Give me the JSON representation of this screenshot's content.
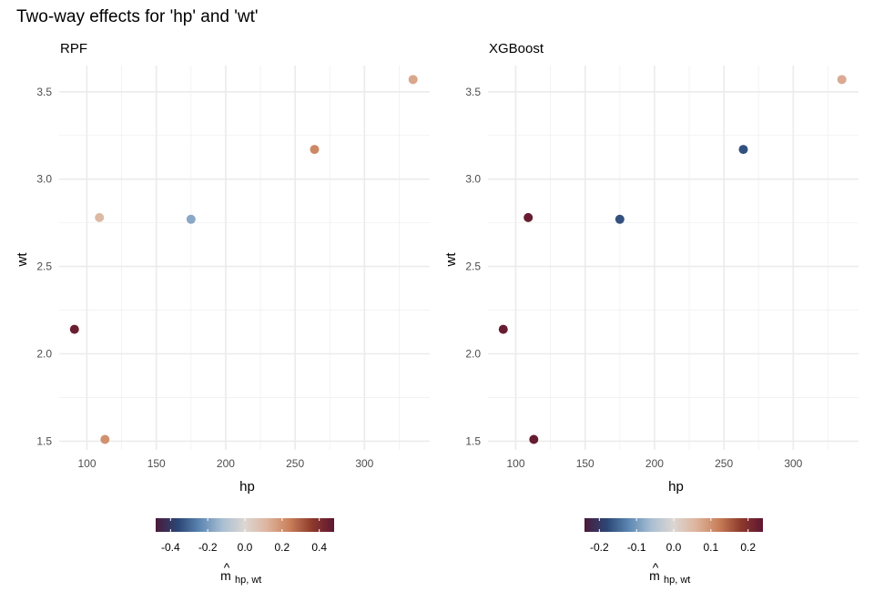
{
  "title": "Two-way effects for 'hp' and 'wt'",
  "chart_data": [
    {
      "type": "scatter",
      "subtitle": "RPF",
      "xlabel": "hp",
      "ylabel": "wt",
      "xlim": [
        80,
        347
      ],
      "ylim": [
        1.45,
        3.65
      ],
      "x_ticks": [
        "100",
        "150",
        "200",
        "250",
        "300"
      ],
      "x_tick_values": [
        100,
        150,
        200,
        250,
        300
      ],
      "y_ticks": [
        "1.5",
        "2.0",
        "2.5",
        "3.0",
        "3.5"
      ],
      "y_tick_values": [
        1.5,
        2.0,
        2.5,
        3.0,
        3.5
      ],
      "grid": true,
      "points": [
        {
          "x": 335,
          "y": 3.57,
          "value": 0.15
        },
        {
          "x": 264,
          "y": 3.17,
          "value": 0.22
        },
        {
          "x": 109,
          "y": 2.78,
          "value": 0.1
        },
        {
          "x": 175,
          "y": 2.77,
          "value": -0.17
        },
        {
          "x": 91,
          "y": 2.14,
          "value": 0.45
        },
        {
          "x": 113,
          "y": 1.51,
          "value": 0.2
        }
      ],
      "legend": {
        "position": "bottom",
        "title_main": "m",
        "title_hat": "^",
        "title_sub": "hp, wt",
        "limits": [
          -0.48,
          0.48
        ],
        "tick_labels": [
          "-0.4",
          "-0.2",
          "0.0",
          "0.2",
          "0.4"
        ],
        "tick_values": [
          -0.4,
          -0.2,
          0.0,
          0.2,
          0.4
        ]
      }
    },
    {
      "type": "scatter",
      "subtitle": "XGBoost",
      "xlabel": "hp",
      "ylabel": "wt",
      "xlim": [
        80,
        347
      ],
      "ylim": [
        1.45,
        3.65
      ],
      "x_ticks": [
        "100",
        "150",
        "200",
        "250",
        "300"
      ],
      "x_tick_values": [
        100,
        150,
        200,
        250,
        300
      ],
      "y_ticks": [
        "1.5",
        "2.0",
        "2.5",
        "3.0",
        "3.5"
      ],
      "y_tick_values": [
        1.5,
        2.0,
        2.5,
        3.0,
        3.5
      ],
      "grid": true,
      "points": [
        {
          "x": 335,
          "y": 3.57,
          "value": 0.07
        },
        {
          "x": 264,
          "y": 3.17,
          "value": -0.17
        },
        {
          "x": 109,
          "y": 2.78,
          "value": 0.23
        },
        {
          "x": 175,
          "y": 2.77,
          "value": -0.17
        },
        {
          "x": 91,
          "y": 2.14,
          "value": 0.23
        },
        {
          "x": 113,
          "y": 1.51,
          "value": 0.23
        }
      ],
      "legend": {
        "position": "bottom",
        "title_main": "m",
        "title_hat": "^",
        "title_sub": "hp, wt",
        "limits": [
          -0.24,
          0.24
        ],
        "tick_labels": [
          "-0.2",
          "-0.1",
          "0.0",
          "0.1",
          "0.2"
        ],
        "tick_values": [
          -0.2,
          -0.1,
          0.0,
          0.1,
          0.2
        ]
      }
    }
  ],
  "colorscale": [
    "#4a1a3a",
    "#2b4675",
    "#5e88b4",
    "#a9bfd2",
    "#dcd6d2",
    "#ddb49d",
    "#c9805a",
    "#8e3a2c",
    "#5e1632"
  ]
}
